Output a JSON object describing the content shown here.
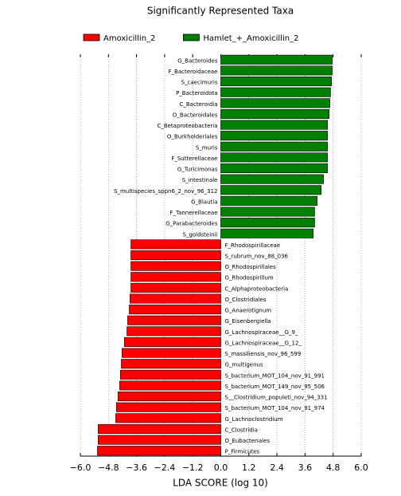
{
  "chart_data": {
    "type": "hbar",
    "title": "Significantly Represented Taxa",
    "x_label": "LDA SCORE (log 10)",
    "categories": [
      "G_Bacteroides",
      "F_Bacteroidaceae",
      "S_caecimuris",
      "P_Bacteroidota",
      "C_Bacteroidia",
      "O_Bacteroidales",
      "C_Betaproteobacteria",
      "O_Burkholderiales",
      "S_muris",
      "F_Sutterellaceae",
      "G_Turicimonas",
      "S_intestinale",
      "S_multispecies_sppn6_2_nov_96_312",
      "G_Blautia",
      "F_Tannerellaceae",
      "G_Parabacteroides",
      "S_goldsteinii",
      "F_Rhodospirillaceae",
      "S_rubrum_nov_88_036",
      "O_Rhodospirillales",
      "G_Rhodospirillum",
      "C_Alphaproteobacteria",
      "O_Clostridiales",
      "G_Anaerotignum",
      "G_Eisenbergiella",
      "G_Lachnospiraceae__G_9_",
      "G_Lachnospiraceae__G_12_",
      "S_massiliensis_nov_96_599",
      "G_multigenus",
      "S_bacterium_MOT_104_nov_91_991",
      "S_bacterium_MOT_149_nov_95_506",
      "S__Clostridium_populeti_nov_94_331",
      "S_bacterium_MOT_104_nov_91_974",
      "G_Lachnoclostridium",
      "C_Clostridia",
      "O_Eubacteriales",
      "P_Firmicutes"
    ],
    "series": [
      {
        "name": "Amoxicillin_2",
        "color": "#ff0000",
        "values": [
          null,
          null,
          null,
          null,
          null,
          null,
          null,
          null,
          null,
          null,
          null,
          null,
          null,
          null,
          null,
          null,
          null,
          -3.84,
          -3.84,
          -3.84,
          -3.84,
          -3.84,
          -3.88,
          -3.91,
          -3.98,
          -4.01,
          -4.12,
          -4.22,
          -4.25,
          -4.29,
          -4.32,
          -4.39,
          -4.46,
          -4.49,
          -5.24,
          -5.24,
          -5.27
        ]
      },
      {
        "name": "Hamlet_+_Amoxicillin_2",
        "color": "#008000",
        "values": [
          4.76,
          4.76,
          4.73,
          4.69,
          4.66,
          4.63,
          4.56,
          4.56,
          4.56,
          4.56,
          4.56,
          4.39,
          4.29,
          4.12,
          4.01,
          4.01,
          3.95,
          null,
          null,
          null,
          null,
          null,
          null,
          null,
          null,
          null,
          null,
          null,
          null,
          null,
          null,
          null,
          null,
          null,
          null,
          null,
          null
        ]
      }
    ],
    "xlim": [
      -6,
      6
    ],
    "xticks": [
      {
        "value": -6,
        "label": "−6.0"
      },
      {
        "value": -4.8,
        "label": "−4.8"
      },
      {
        "value": -3.6,
        "label": "−3.6"
      },
      {
        "value": -2.4,
        "label": "−2.4"
      },
      {
        "value": -1.2,
        "label": "−1.2"
      },
      {
        "value": 0,
        "label": "0.0"
      },
      1.2,
      2.4,
      3.6,
      4.8,
      {
        "value": 6,
        "label": "6.0"
      }
    ],
    "grid": true,
    "legend": "top"
  }
}
